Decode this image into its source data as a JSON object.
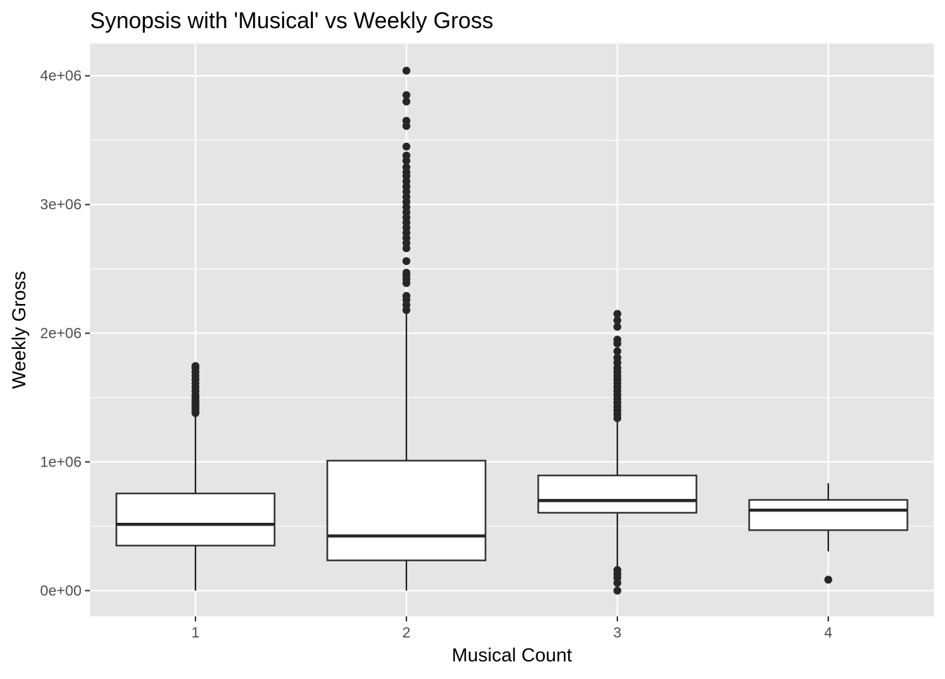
{
  "chart_data": {
    "type": "box",
    "title": "Synopsis with 'Musical' vs Weekly Gross",
    "xlabel": "Musical Count",
    "ylabel": "Weekly Gross",
    "categories": [
      "1",
      "2",
      "3",
      "4"
    ],
    "ylim": [
      -200000,
      4250000
    ],
    "y_ticks": [
      0,
      1000000,
      2000000,
      3000000,
      4000000
    ],
    "y_tick_labels": [
      "0e+00",
      "1e+06",
      "2e+06",
      "3e+06",
      "4e+06"
    ],
    "grid": true,
    "legend": "none",
    "colors": {
      "panel_background": "#e5e5e5",
      "grid": "#ffffff",
      "box_fill": "#ffffff",
      "box_stroke": "#262626",
      "outlier": "#262626"
    },
    "boxes": [
      {
        "category": "1",
        "whisker_low": 0,
        "q1": 350000,
        "median": 515000,
        "q3": 755000,
        "whisker_high": 1370000,
        "outliers": [
          1380000,
          1400000,
          1420000,
          1440000,
          1460000,
          1480000,
          1500000,
          1520000,
          1550000,
          1580000,
          1610000,
          1640000,
          1670000,
          1700000,
          1730000,
          1745000
        ]
      },
      {
        "category": "2",
        "whisker_low": 0,
        "q1": 235000,
        "median": 425000,
        "q3": 1010000,
        "whisker_high": 2170000,
        "outliers": [
          2180000,
          2220000,
          2260000,
          2290000,
          2390000,
          2420000,
          2450000,
          2470000,
          2560000,
          2660000,
          2700000,
          2740000,
          2780000,
          2820000,
          2860000,
          2900000,
          2940000,
          2980000,
          3020000,
          3060000,
          3100000,
          3140000,
          3180000,
          3220000,
          3250000,
          3290000,
          3340000,
          3380000,
          3450000,
          3610000,
          3650000,
          3800000,
          3850000,
          4040000
        ]
      },
      {
        "category": "3",
        "whisker_low": 190000,
        "q1": 605000,
        "median": 700000,
        "q3": 895000,
        "whisker_high": 1330000,
        "outliers": [
          0,
          60000,
          100000,
          130000,
          160000,
          1340000,
          1370000,
          1400000,
          1430000,
          1460000,
          1490000,
          1520000,
          1550000,
          1580000,
          1610000,
          1640000,
          1670000,
          1700000,
          1730000,
          1770000,
          1810000,
          1860000,
          1920000,
          1950000,
          2050000,
          2100000,
          2150000
        ]
      },
      {
        "category": "4",
        "whisker_low": 305000,
        "q1": 470000,
        "median": 625000,
        "q3": 705000,
        "whisker_high": 835000,
        "outliers": [
          85000
        ]
      }
    ]
  }
}
